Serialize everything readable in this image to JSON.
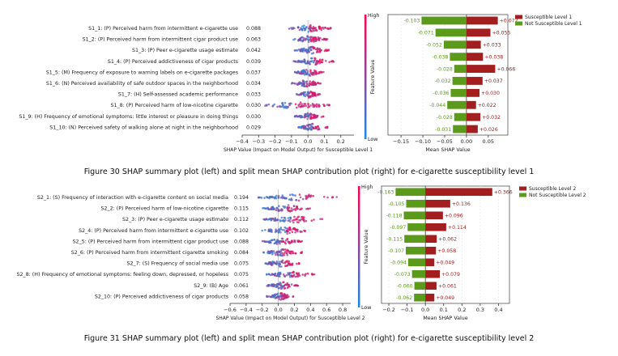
{
  "captions": {
    "fig30": "Figure 30 SHAP summary plot (left) and split mean SHAP contribution plot (right) for e-cigarette susceptibility level 1",
    "fig31": "Figure 31 SHAP summary plot (left) and split mean SHAP contribution plot (right) for e-cigarette susceptibility level 2"
  },
  "chart_data": [
    {
      "type": "scatter",
      "subtype": "shap-beeswarm",
      "xlabel": "SHAP Value (Impact on Model Output) for Susceptible Level 1",
      "xlim": [
        -0.4,
        0.28
      ],
      "xticks": [
        -0.4,
        -0.3,
        -0.2,
        -0.1,
        0.0,
        0.1,
        0.2
      ],
      "colorbar": {
        "title": "Feature Value",
        "high": "High",
        "low": "Low",
        "colors": [
          "#1e88e5",
          "#ff0052"
        ]
      },
      "features": [
        "S1_1: (P) Perceived harm from intermittent e-cigarette use",
        "S1_2: (P) Perceived harm from intermittent cigar product use",
        "S1_3: (P) Peer e-cigarette usage estimate",
        "S1_4: (P) Perceived addictiveness of cigar products",
        "S1_5: (M) Frequency of exposure to warning labels on e-cigarette packages",
        "S1_6: (N) Perceived availability of safe outdoor spaces in the neighborhood",
        "S1_7: (H) Self-assessed academic performance",
        "S1_8: (P) Perceived harm of low-nicotine cigarette",
        "S1_9: (H) Frequency of emotional symptoms: little interest or pleasure in doing things",
        "S1_10: (N) Perceived safety of walking alone at night in the neighborhood"
      ],
      "importance": [
        "0.088",
        "0.063",
        "0.042",
        "0.039",
        "0.037",
        "0.034",
        "0.033",
        "0.030",
        "0.030",
        "0.029"
      ],
      "spread": [
        [
          -0.12,
          0.14
        ],
        [
          -0.1,
          0.12
        ],
        [
          -0.08,
          0.13
        ],
        [
          -0.09,
          0.16
        ],
        [
          -0.08,
          0.1
        ],
        [
          -0.1,
          0.08
        ],
        [
          -0.07,
          0.08
        ],
        [
          -0.3,
          0.15
        ],
        [
          -0.08,
          0.1
        ],
        [
          -0.06,
          0.12
        ]
      ]
    },
    {
      "type": "bar",
      "subtype": "split-mean-shap",
      "xlabel": "Mean SHAP Value",
      "xlim": [
        -0.18,
        0.095
      ],
      "xticks": [
        -0.15,
        -0.1,
        -0.05,
        0.0,
        0.05
      ],
      "legend_position": "top-right",
      "series": [
        {
          "name": "Susceptible Level 1",
          "color": "#a31e1e",
          "values": [
            0.072,
            0.055,
            0.033,
            0.038,
            0.066,
            0.037,
            0.03,
            0.022,
            0.032,
            0.026
          ],
          "labels": [
            "+0.072",
            "+0.055",
            "+0.033",
            "+0.038",
            "+0.066",
            "+0.037",
            "+0.030",
            "+0.022",
            "+0.032",
            "+0.026"
          ]
        },
        {
          "name": "Not Susceptible Level 1",
          "color": "#5c9a1b",
          "values": [
            -0.103,
            -0.071,
            -0.052,
            -0.038,
            -0.028,
            -0.032,
            -0.036,
            -0.044,
            -0.028,
            -0.031
          ],
          "labels": [
            "-0.103",
            "-0.071",
            "-0.052",
            "-0.038",
            "-0.028",
            "-0.032",
            "-0.036",
            "-0.044",
            "-0.028",
            "-0.031"
          ]
        }
      ]
    },
    {
      "type": "scatter",
      "subtype": "shap-beeswarm",
      "xlabel": "SHAP Value (Impact on Model Output) for Susceptible Level 2",
      "xlim": [
        -0.6,
        0.9
      ],
      "xticks": [
        -0.6,
        -0.4,
        -0.2,
        0.0,
        0.2,
        0.4,
        0.6,
        0.8
      ],
      "colorbar": {
        "title": "Feature Value",
        "high": "High",
        "low": "Low",
        "colors": [
          "#1e88e5",
          "#ff0052"
        ]
      },
      "features": [
        "S2_1: (S) Frequency of interaction with e-cigarette content on social media",
        "S2_2: (P) Perceived harm of low-nicotine cigarette",
        "S2_3: (P) Peer e-cigarette usage estimate",
        "S2_4: (P) Perceived harm from intermittent e-cigarette use",
        "S2_5: (P) Perceived harm from intermittent cigar product use",
        "S2_6: (P) Perceived harm from intermittent cigarette smoking",
        "S2_7: (S) Frequency of social media use",
        "S2_8: (H) Frequency of emotional symptoms: feeling down, depressed, or hopeless",
        "S2_9: (B) Age",
        "S2_10: (P) Perceived addictiveness of cigar products"
      ],
      "importance": [
        "0.194",
        "0.115",
        "0.112",
        "0.102",
        "0.088",
        "0.084",
        "0.075",
        "0.075",
        "0.061",
        "0.058"
      ],
      "spread": [
        [
          -0.25,
          0.75
        ],
        [
          -0.2,
          0.4
        ],
        [
          -0.2,
          0.55
        ],
        [
          -0.2,
          0.4
        ],
        [
          -0.2,
          0.3
        ],
        [
          -0.2,
          0.3
        ],
        [
          -0.2,
          0.3
        ],
        [
          -0.15,
          0.45
        ],
        [
          -0.15,
          0.25
        ],
        [
          -0.15,
          0.2
        ]
      ]
    },
    {
      "type": "bar",
      "subtype": "split-mean-shap",
      "xlabel": "Mean SHAP Value",
      "xlim": [
        -0.24,
        0.46
      ],
      "xticks": [
        -0.2,
        -0.1,
        0.0,
        0.1,
        0.2,
        0.3,
        0.4
      ],
      "legend_position": "top-right",
      "series": [
        {
          "name": "Susceptible Level 2",
          "color": "#a31e1e",
          "values": [
            0.366,
            0.136,
            0.096,
            0.114,
            0.062,
            0.058,
            0.049,
            0.079,
            0.061,
            0.049
          ],
          "labels": [
            "+0.366",
            "+0.136",
            "+0.096",
            "+0.114",
            "+0.062",
            "+0.058",
            "+0.049",
            "+0.079",
            "+0.061",
            "+0.049"
          ]
        },
        {
          "name": "Not Susceptible Level 2",
          "color": "#5c9a1b",
          "values": [
            -0.163,
            -0.105,
            -0.118,
            -0.097,
            -0.115,
            -0.107,
            -0.094,
            -0.073,
            -0.06,
            -0.062
          ],
          "labels": [
            "-0.163",
            "-0.105",
            "-0.118",
            "-0.097",
            "-0.115",
            "-0.107",
            "-0.094",
            "-0.073",
            "-0.060",
            "-0.062"
          ]
        }
      ]
    }
  ]
}
